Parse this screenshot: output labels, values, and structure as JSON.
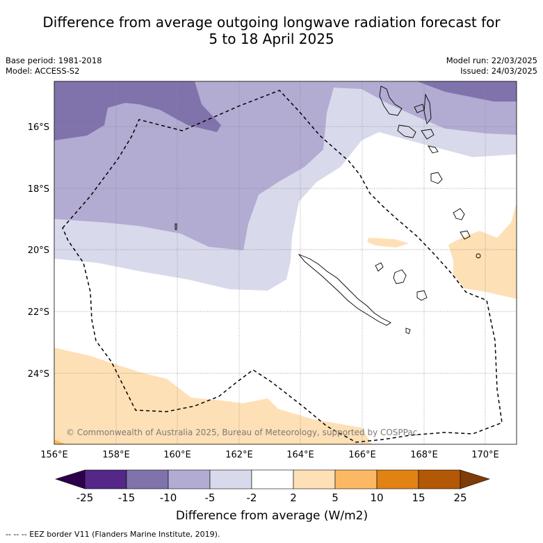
{
  "title": {
    "line1": "Difference from average outgoing longwave radiation forecast for",
    "line2": "5 to 18 April 2025"
  },
  "meta": {
    "base_period": "Base period: 1981-2018",
    "model": "Model: ACCESS-S2",
    "model_run": "Model run: 22/03/2025",
    "issued": "Issued: 24/03/2025"
  },
  "map": {
    "lon_labels": [
      "156°E",
      "158°E",
      "160°E",
      "162°E",
      "164°E",
      "166°E",
      "168°E",
      "170°E"
    ],
    "lat_labels": [
      "16°S",
      "18°S",
      "20°S",
      "22°S",
      "24°S"
    ],
    "copyright": "© Commonwealth of Australia 2025, Bureau of Meteorology, supported by COSPPac"
  },
  "colorbar": {
    "ticks": [
      "-25",
      "-15",
      "-10",
      "-5",
      "-2",
      "2",
      "5",
      "10",
      "15",
      "25"
    ],
    "colors": [
      "#2d004b",
      "#542788",
      "#8073ac",
      "#b2abd2",
      "#d8daeb",
      "#ffffff",
      "#fee0b6",
      "#fdb863",
      "#e08214",
      "#b35806",
      "#7f3b08"
    ],
    "title": "Difference from average (W/m2)"
  },
  "legend": {
    "eez": "--  --  -- EEZ border V11 (Flanders Marine Institute, 2019)."
  }
}
